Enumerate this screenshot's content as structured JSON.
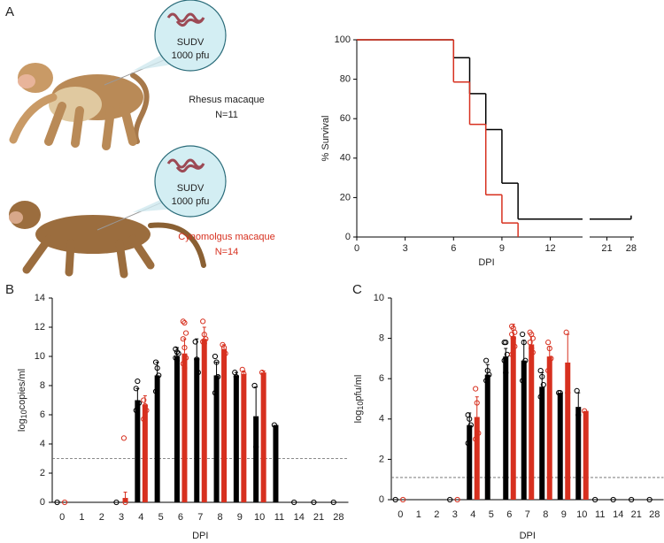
{
  "panels": [
    "A",
    "B",
    "C"
  ],
  "illustration": [
    {
      "virus": "SUDV",
      "dose": "1000 pfu"
    },
    {
      "virus": "SUDV",
      "dose": "1000 pfu"
    }
  ],
  "chart_data": [
    {
      "type": "line",
      "step": true,
      "xlabel": "DPI",
      "ylabel": "% Survival",
      "xlim": [
        0,
        28.8
      ],
      "xbreak": [
        14,
        16
      ],
      "xticks": [
        0,
        3,
        6,
        9,
        12,
        21,
        28
      ],
      "ylim": [
        0,
        100
      ],
      "yticks": [
        0,
        20,
        40,
        60,
        80,
        100
      ],
      "series": [
        {
          "name": "Rhesus macaque",
          "n_label": "N=11",
          "color": "#000000",
          "x": [
            0,
            6,
            7,
            8,
            9,
            10,
            28
          ],
          "values": [
            100,
            90.9,
            72.7,
            54.5,
            27.3,
            9.1,
            9.1
          ]
        },
        {
          "name": "Cynomolgus macaque",
          "n_label": "N=14",
          "color": "#d7301f",
          "x": [
            0,
            6,
            7,
            8,
            9,
            10
          ],
          "values": [
            100,
            78.6,
            57.1,
            21.4,
            7.1,
            0
          ]
        }
      ]
    },
    {
      "type": "bar",
      "xlabel": "DPI",
      "ylabel": {
        "base": "log",
        "subscript": "10",
        "unit": "copies/ml"
      },
      "categories": [
        "0",
        "1",
        "2",
        "3",
        "4",
        "5",
        "6",
        "7",
        "8",
        "9",
        "10",
        "11",
        "14",
        "21",
        "28"
      ],
      "ylim": [
        0,
        14
      ],
      "yticks": [
        0,
        2,
        4,
        6,
        8,
        10,
        12,
        14
      ],
      "threshold": 3,
      "series": [
        {
          "color": "#000000",
          "values": [
            0,
            null,
            null,
            0,
            7.0,
            8.7,
            10.0,
            9.9,
            8.7,
            8.7,
            5.9,
            5.3,
            0,
            0,
            0
          ],
          "errors": [
            null,
            null,
            null,
            null,
            0.8,
            0.9,
            0.6,
            1.3,
            0.9,
            0.2,
            2.0,
            null,
            null,
            null,
            null
          ],
          "points": [
            [
              0
            ],
            null,
            null,
            [
              0
            ],
            [
              7.8,
              8.3,
              6.8,
              6.3
            ],
            [
              9.6,
              9.2,
              8.7,
              7.6
            ],
            [
              10.5,
              10.3,
              10.2,
              9.9,
              9.7
            ],
            [
              11.0,
              9.8,
              8.9
            ],
            [
              10.0,
              9.6,
              8.6,
              7.5
            ],
            [
              8.9,
              8.6
            ],
            [
              8.0,
              3.8
            ],
            [
              5.3
            ],
            [
              0
            ],
            [
              0
            ],
            [
              0
            ]
          ]
        },
        {
          "color": "#d7301f",
          "values": [
            0,
            null,
            null,
            0.3,
            6.7,
            null,
            10.2,
            11.2,
            10.5,
            8.8,
            8.9,
            null,
            null,
            null,
            null
          ],
          "errors": [
            null,
            null,
            null,
            0.4,
            0.6,
            null,
            1.0,
            0.8,
            0.3,
            0.2,
            0.1,
            null,
            null,
            null,
            null
          ],
          "points": [
            [
              0
            ],
            null,
            null,
            [
              4.4,
              0
            ],
            [
              7.0,
              6.6,
              6.3,
              5.7
            ],
            null,
            [
              12.4,
              12.3,
              11.6,
              11.2,
              10.6,
              9.9,
              9.5,
              9.2
            ],
            [
              12.4,
              11.5,
              11.2,
              11.0,
              10.9
            ],
            [
              10.8,
              10.6,
              10.2
            ],
            [
              9.1,
              8.8
            ],
            [
              8.9
            ],
            null,
            null,
            null,
            null
          ]
        }
      ]
    },
    {
      "type": "bar",
      "xlabel": "DPI",
      "ylabel": {
        "base": "log",
        "subscript": "10",
        "unit": "pfu/ml"
      },
      "categories": [
        "0",
        "1",
        "2",
        "3",
        "4",
        "5",
        "6",
        "7",
        "8",
        "9",
        "10",
        "11",
        "14",
        "21",
        "28"
      ],
      "ylim": [
        0,
        10
      ],
      "yticks": [
        0,
        2,
        4,
        6,
        8,
        10
      ],
      "threshold": 1.1,
      "series": [
        {
          "color": "#000000",
          "values": [
            0,
            null,
            null,
            0,
            3.7,
            6.2,
            7.1,
            6.9,
            5.6,
            5.3,
            4.6,
            0,
            0,
            0,
            0
          ],
          "errors": [
            null,
            null,
            null,
            null,
            0.6,
            0.5,
            0.4,
            1.0,
            0.7,
            null,
            0.7,
            null,
            null,
            null,
            null
          ],
          "points": [
            [
              0
            ],
            null,
            null,
            [
              0
            ],
            [
              4.2,
              4.0,
              3.7,
              2.8
            ],
            [
              6.9,
              6.4,
              6.2,
              5.9
            ],
            [
              7.8,
              7.8,
              7.2,
              6.9,
              6.3
            ],
            [
              8.2,
              7.8,
              6.9,
              5.9
            ],
            [
              6.4,
              6.1,
              5.7,
              5.1
            ],
            [
              5.3,
              5.3
            ],
            [
              5.4,
              4.2
            ],
            [
              0
            ],
            [
              0
            ],
            [
              0
            ],
            [
              0
            ]
          ]
        },
        {
          "color": "#d7301f",
          "values": [
            0,
            null,
            null,
            0,
            4.1,
            null,
            8.1,
            7.7,
            7.1,
            6.8,
            4.4,
            null,
            null,
            null,
            null
          ],
          "errors": [
            null,
            null,
            null,
            null,
            1.0,
            null,
            0.6,
            0.4,
            0.5,
            1.4,
            null,
            null,
            null,
            null,
            null
          ],
          "points": [
            [
              0
            ],
            null,
            null,
            [
              0
            ],
            [
              5.5,
              4.8,
              3.3,
              3.0
            ],
            null,
            [
              8.6,
              8.5,
              8.3,
              8.2,
              8.0,
              7.6,
              7.2
            ],
            [
              8.3,
              8.2,
              8.0,
              7.8,
              7.5,
              7.3
            ],
            [
              7.8,
              7.5,
              7.0,
              6.4
            ],
            [
              8.3,
              5.3
            ],
            [
              4.4
            ],
            null,
            null,
            null,
            null
          ]
        }
      ]
    }
  ]
}
